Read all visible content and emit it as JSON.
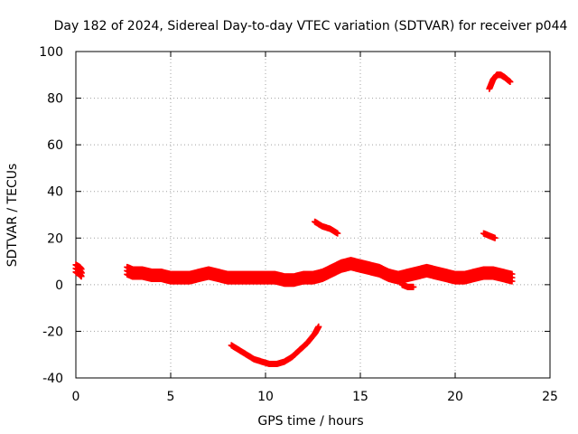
{
  "chart_data": {
    "type": "scatter",
    "title": "Day 182 of 2024, Sidereal Day-to-day VTEC variation (SDTVAR) for receiver p044",
    "xlabel": "GPS time / hours",
    "ylabel": "SDTVAR / TECUs",
    "xlim": [
      0,
      25
    ],
    "ylim": [
      -40,
      100
    ],
    "xticks": [
      0,
      5,
      10,
      15,
      20,
      25
    ],
    "yticks": [
      -40,
      -20,
      0,
      20,
      40,
      60,
      80,
      100
    ],
    "xtick_labels": [
      "0",
      "5",
      "10",
      "15",
      "20",
      "25"
    ],
    "ytick_labels": [
      "-40",
      "-20",
      "0",
      "20",
      "40",
      "60",
      "80",
      "100"
    ],
    "grid": true,
    "marker": "plus",
    "color": "#ff0000",
    "series": [
      {
        "name": "main-band",
        "x": [
          0.0,
          0.2,
          0.3,
          2.7,
          3.0,
          3.5,
          4.0,
          4.5,
          5.0,
          5.5,
          6.0,
          6.5,
          7.0,
          7.5,
          8.0,
          8.5,
          9.0,
          9.5,
          10.0,
          10.5,
          11.0,
          11.5,
          12.0,
          12.5,
          13.0,
          13.5,
          14.0,
          14.5,
          15.0,
          15.5,
          16.0,
          16.5,
          17.0,
          17.5,
          18.0,
          18.5,
          19.0,
          19.5,
          20.0,
          20.5,
          21.0,
          21.5,
          22.0,
          22.5,
          23.0
        ],
        "y": [
          7,
          6,
          5,
          6,
          5,
          5,
          4,
          4,
          3,
          3,
          3,
          4,
          5,
          4,
          3,
          3,
          3,
          3,
          3,
          3,
          2,
          2,
          3,
          3,
          4,
          6,
          8,
          9,
          8,
          7,
          6,
          4,
          3,
          4,
          5,
          6,
          5,
          4,
          3,
          3,
          4,
          5,
          5,
          4,
          3
        ]
      },
      {
        "name": "dip-17h",
        "x": [
          17.2,
          17.5,
          17.8
        ],
        "y": [
          0,
          -1,
          -1
        ]
      },
      {
        "name": "negative-arc",
        "x": [
          8.2,
          8.6,
          9.0,
          9.4,
          9.8,
          10.2,
          10.6,
          11.0,
          11.4,
          11.8,
          12.2,
          12.6,
          12.8
        ],
        "y": [
          -26,
          -28,
          -30,
          -32,
          -33,
          -34,
          -34,
          -33,
          -31,
          -28,
          -25,
          -21,
          -18
        ]
      },
      {
        "name": "arc-13h",
        "x": [
          12.6,
          13.0,
          13.4,
          13.8
        ],
        "y": [
          27,
          25,
          24,
          22
        ]
      },
      {
        "name": "arc-21h",
        "x": [
          21.5,
          21.8,
          22.1
        ],
        "y": [
          22,
          21,
          20
        ]
      },
      {
        "name": "arc-22h",
        "x": [
          21.8,
          22.0,
          22.2,
          22.4,
          22.6,
          22.9
        ],
        "y": [
          84,
          88,
          90,
          90,
          89,
          87
        ]
      }
    ]
  }
}
